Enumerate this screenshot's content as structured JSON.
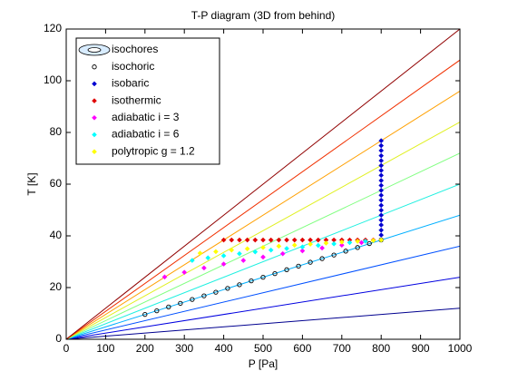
{
  "chart_data": {
    "type": "line",
    "title": "T-P diagram (3D from behind)",
    "xlabel": "P [Pa]",
    "ylabel": "T [K]",
    "xlim": [
      0,
      1000
    ],
    "ylim": [
      0,
      120
    ],
    "xticks": [
      0,
      100,
      200,
      300,
      400,
      500,
      600,
      700,
      800,
      900,
      1000
    ],
    "yticks": [
      0,
      20,
      40,
      60,
      80,
      100,
      120
    ],
    "legend": "upper left",
    "isochores": {
      "name": "isochores",
      "x": [
        0,
        1000
      ],
      "lines": [
        {
          "color": "#00008f",
          "values": [
            0,
            12
          ]
        },
        {
          "color": "#0000e0",
          "values": [
            0,
            24
          ]
        },
        {
          "color": "#0050ff",
          "values": [
            0,
            36
          ]
        },
        {
          "color": "#00b0ff",
          "values": [
            0,
            48
          ]
        },
        {
          "color": "#20f0e0",
          "values": [
            0,
            60
          ]
        },
        {
          "color": "#80ff80",
          "values": [
            0,
            72
          ]
        },
        {
          "color": "#e0f020",
          "values": [
            0,
            84
          ]
        },
        {
          "color": "#ffa000",
          "values": [
            0,
            96
          ]
        },
        {
          "color": "#f03000",
          "values": [
            0,
            108
          ]
        },
        {
          "color": "#900000",
          "values": [
            0,
            120
          ]
        }
      ]
    },
    "series": [
      {
        "name": "isochoric",
        "color": "#000000",
        "marker": "circle",
        "x": [
          200,
          230,
          260,
          290,
          320,
          350,
          380,
          410,
          440,
          470,
          500,
          530,
          560,
          590,
          620,
          650,
          680,
          710,
          740,
          770,
          800
        ],
        "values": [
          9.6,
          11.0,
          12.5,
          13.9,
          15.4,
          16.8,
          18.2,
          19.7,
          21.1,
          22.6,
          24.0,
          25.4,
          26.9,
          28.3,
          29.8,
          31.2,
          32.6,
          34.1,
          35.5,
          37.0,
          38.4
        ]
      },
      {
        "name": "isobaric",
        "color": "#0000d0",
        "marker": "diamond",
        "x": [
          800,
          800,
          800,
          800,
          800,
          800,
          800,
          800,
          800,
          800,
          800,
          800,
          800,
          800,
          800,
          800,
          800,
          800,
          800,
          800,
          800
        ],
        "values": [
          38.4,
          40.3,
          42.2,
          44.2,
          46.1,
          48.0,
          49.9,
          51.8,
          53.8,
          55.7,
          57.6,
          59.5,
          61.4,
          63.4,
          65.3,
          67.2,
          69.1,
          71.0,
          73.0,
          74.9,
          76.8
        ]
      },
      {
        "name": "isothermic",
        "color": "#e00000",
        "marker": "diamond",
        "x": [
          400,
          420,
          440,
          460,
          480,
          500,
          520,
          540,
          560,
          580,
          600,
          620,
          640,
          660,
          680,
          700,
          720,
          740,
          760,
          780,
          800
        ],
        "values": [
          38.4,
          38.4,
          38.4,
          38.4,
          38.4,
          38.4,
          38.4,
          38.4,
          38.4,
          38.4,
          38.4,
          38.4,
          38.4,
          38.4,
          38.4,
          38.4,
          38.4,
          38.4,
          38.4,
          38.4,
          38.4
        ]
      },
      {
        "name": "adiabatic i = 3",
        "color": "#ff00ff",
        "marker": "diamond",
        "x": [
          250,
          300,
          350,
          400,
          450,
          500,
          550,
          600,
          650,
          700,
          750,
          800
        ],
        "values": [
          24.1,
          25.9,
          27.6,
          29.1,
          30.5,
          31.8,
          33.1,
          34.2,
          35.3,
          36.4,
          37.4,
          38.4
        ]
      },
      {
        "name": "adiabatic i = 6",
        "color": "#00ffff",
        "marker": "diamond",
        "x": [
          320,
          360,
          400,
          440,
          480,
          520,
          560,
          600,
          640,
          680,
          720,
          760,
          800
        ],
        "values": [
          30.5,
          31.5,
          32.3,
          33.1,
          33.8,
          34.5,
          35.1,
          35.7,
          36.3,
          36.9,
          37.4,
          37.9,
          38.4
        ]
      },
      {
        "name": "polytropic g = 1.2",
        "color": "#ffff00",
        "marker": "diamond",
        "x": [
          340,
          380,
          420,
          460,
          500,
          540,
          580,
          620,
          660,
          700,
          740,
          780,
          800
        ],
        "values": [
          33.3,
          33.9,
          34.5,
          35.0,
          35.5,
          36.0,
          36.4,
          36.8,
          37.2,
          37.6,
          37.9,
          38.2,
          38.4
        ]
      }
    ]
  }
}
